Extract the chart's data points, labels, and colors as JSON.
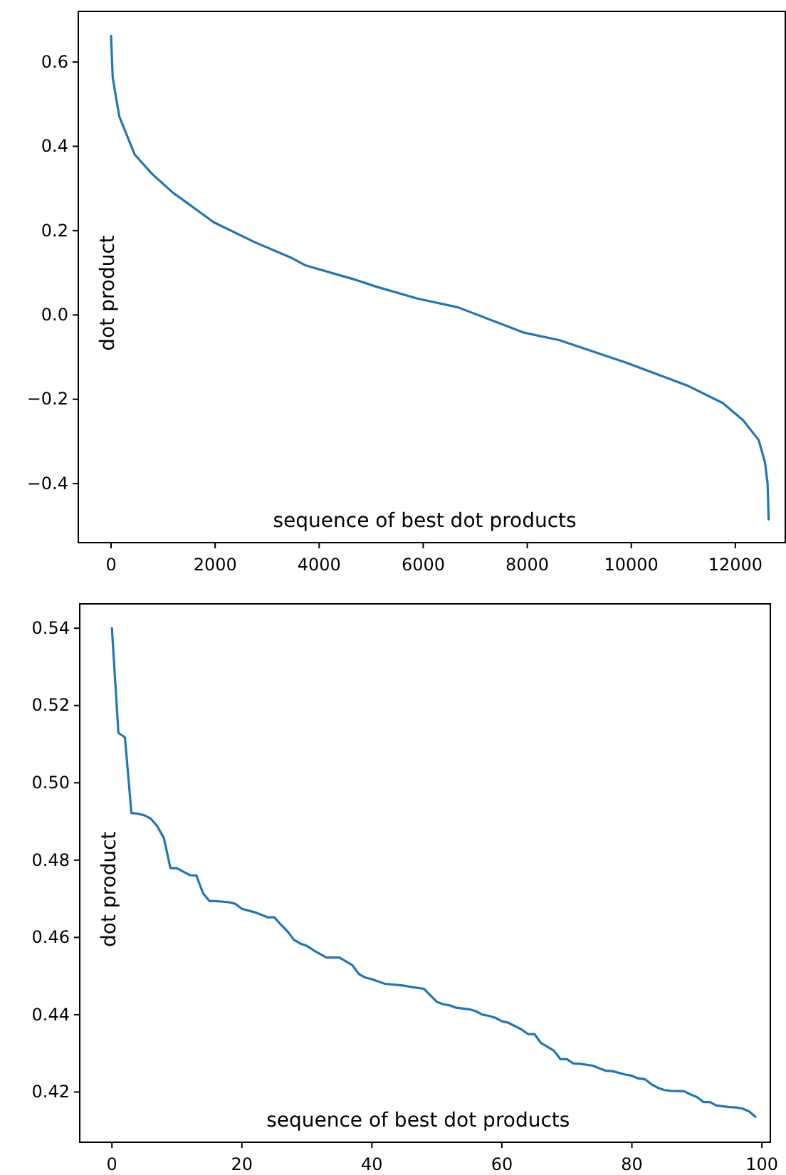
{
  "chart_data": [
    {
      "type": "line",
      "xlabel": "sequence of best dot products",
      "ylabel": "dot product",
      "xlim": [
        -630,
        12960
      ],
      "ylim": [
        -0.54,
        0.72
      ],
      "xticks": [
        0,
        2000,
        4000,
        6000,
        8000,
        10000,
        12000
      ],
      "yticks": [
        {
          "value": -0.4,
          "label": "−0.4"
        },
        {
          "value": -0.2,
          "label": "−0.2"
        },
        {
          "value": 0,
          "label": "0.0"
        },
        {
          "value": 0.2,
          "label": "0.2"
        },
        {
          "value": 0.4,
          "label": "0.4"
        },
        {
          "value": 0.6,
          "label": "0.6"
        }
      ],
      "grid": false,
      "series": [
        {
          "color": "#1f77b4",
          "x": [
            0,
            30,
            93,
            160,
            456,
            800,
            1190,
            1970,
            2755,
            3440,
            3730,
            4710,
            5100,
            5890,
            6670,
            7940,
            8620,
            9900,
            11070,
            11760,
            12150,
            12450,
            12570,
            12620,
            12640
          ],
          "values": [
            0.662,
            0.565,
            0.517,
            0.47,
            0.38,
            0.333,
            0.29,
            0.22,
            0.173,
            0.137,
            0.118,
            0.083,
            0.067,
            0.039,
            0.018,
            -0.042,
            -0.06,
            -0.113,
            -0.167,
            -0.209,
            -0.25,
            -0.297,
            -0.35,
            -0.4,
            -0.485
          ]
        }
      ]
    },
    {
      "type": "line",
      "xlabel": "sequence of best dot products",
      "ylabel": "dot product",
      "xlim": [
        -4.95,
        101.3
      ],
      "ylim": [
        0.407,
        0.5463
      ],
      "xticks": [
        0,
        20,
        40,
        60,
        80,
        100
      ],
      "yticks": [
        0.42,
        0.44,
        0.46,
        0.48,
        {
          "value": 0.5,
          "label": "0.50"
        },
        0.52,
        0.54
      ],
      "grid": false,
      "series": [
        {
          "color": "#1f77b4",
          "x": [
            0,
            1,
            2,
            3,
            4,
            5,
            6,
            7,
            8,
            9,
            10,
            11,
            12,
            13,
            14,
            15,
            16,
            18,
            19,
            20,
            22,
            24,
            25,
            26,
            27,
            28,
            29,
            30,
            31,
            33,
            35,
            37,
            38,
            39,
            40,
            42,
            45,
            46,
            48,
            50,
            51,
            52,
            53,
            55,
            56,
            57,
            58,
            59,
            60,
            61,
            63,
            64,
            65,
            66,
            67,
            68,
            69,
            70,
            71,
            72,
            74,
            75,
            76,
            77,
            79,
            80,
            81,
            82,
            83,
            84,
            85,
            86,
            88,
            89,
            90,
            91,
            92,
            93,
            95,
            96,
            97,
            98,
            99
          ],
          "values": [
            0.54,
            0.5129,
            0.5118,
            0.4922,
            0.492,
            0.4916,
            0.4907,
            0.4887,
            0.4857,
            0.4779,
            0.4779,
            0.477,
            0.4761,
            0.476,
            0.4715,
            0.4694,
            0.4694,
            0.4691,
            0.4687,
            0.4674,
            0.4665,
            0.4652,
            0.4652,
            0.4633,
            0.4616,
            0.4594,
            0.4584,
            0.4578,
            0.4567,
            0.4548,
            0.4548,
            0.4528,
            0.4505,
            0.4496,
            0.4492,
            0.448,
            0.4475,
            0.4472,
            0.4467,
            0.4433,
            0.4427,
            0.4424,
            0.4418,
            0.4414,
            0.4409,
            0.44,
            0.4397,
            0.4392,
            0.4383,
            0.4379,
            0.4362,
            0.435,
            0.435,
            0.4327,
            0.4317,
            0.4307,
            0.4285,
            0.4285,
            0.4274,
            0.4273,
            0.4268,
            0.4261,
            0.4255,
            0.4254,
            0.4245,
            0.4242,
            0.4235,
            0.4233,
            0.422,
            0.4211,
            0.4205,
            0.4203,
            0.4202,
            0.4194,
            0.4187,
            0.4174,
            0.4174,
            0.4165,
            0.4161,
            0.416,
            0.4157,
            0.415,
            0.4136
          ]
        }
      ]
    }
  ]
}
